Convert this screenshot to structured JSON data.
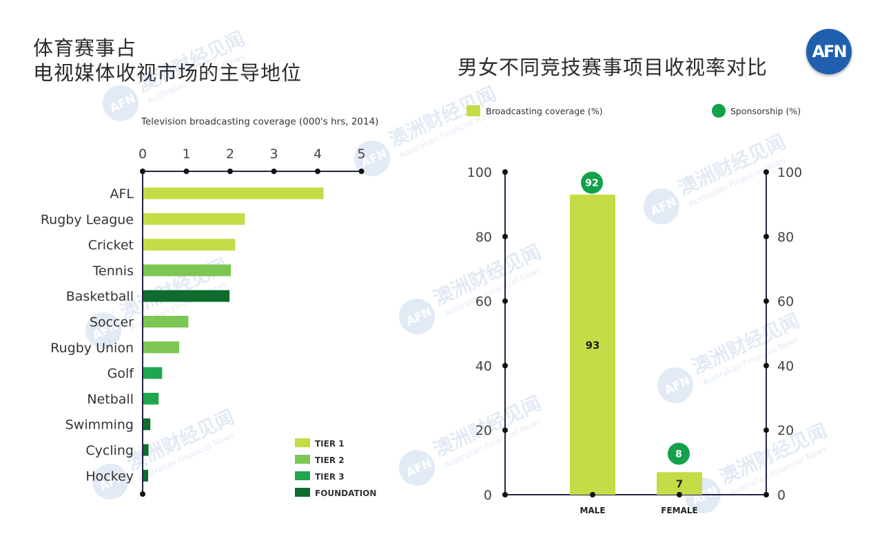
{
  "header": {
    "left_title_line1": "体育赛事占",
    "left_title_line2": "电视媒体收视市场的主导地位",
    "right_title": "男女不同竞技赛事项目收视率对比",
    "logo_text": "AFN"
  },
  "watermark": {
    "logo_text": "AFN",
    "line1": "澳洲财经见闻",
    "line2": "Australian Financial News"
  },
  "colors": {
    "tier1": "#c5dc47",
    "tier2": "#7dc653",
    "tier3": "#1fa74f",
    "foundation": "#0f6b2e",
    "broadcast": "#c5dc47",
    "sponsorship": "#13a14a",
    "axis": "#222244"
  },
  "chart_data": [
    {
      "type": "bar",
      "orientation": "horizontal",
      "title": "Television broadcasting coverage (000's hrs, 2014)",
      "xlim": [
        0,
        5
      ],
      "x_ticks": [
        "0",
        "1",
        "2",
        "3",
        "4",
        "5"
      ],
      "categories": [
        "AFL",
        "Rugby League",
        "Cricket",
        "Tennis",
        "Basketball",
        "Soccer",
        "Rugby Union",
        "Golf",
        "Netball",
        "Swimming",
        "Cycling",
        "Hockey"
      ],
      "values": [
        4.12,
        2.32,
        2.1,
        2.0,
        1.97,
        1.03,
        0.82,
        0.43,
        0.35,
        0.16,
        0.12,
        0.11
      ],
      "tiers": [
        "TIER 1",
        "TIER 1",
        "TIER 1",
        "TIER 2",
        "FOUNDATION",
        "TIER 2",
        "TIER 2",
        "TIER 3",
        "TIER 3",
        "FOUNDATION",
        "FOUNDATION",
        "FOUNDATION"
      ],
      "legend": [
        "TIER 1",
        "TIER 2",
        "TIER 3",
        "FOUNDATION"
      ],
      "legend_position": "bottom-right"
    },
    {
      "type": "bar",
      "categories": [
        "MALE",
        "FEMALE"
      ],
      "series": [
        {
          "name": "Broadcasting coverage (%)",
          "values": [
            93,
            7
          ]
        },
        {
          "name": "Sponsorship (%)",
          "values": [
            92,
            8
          ]
        }
      ],
      "ylim": [
        0,
        100
      ],
      "y_ticks": [
        "0",
        "20",
        "40",
        "60",
        "80",
        "100"
      ],
      "legend_position": "top"
    }
  ]
}
